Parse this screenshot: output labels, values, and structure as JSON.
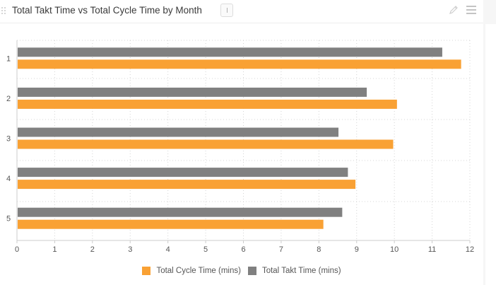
{
  "header": {
    "title": "Total Takt Time vs Total Cycle Time by Month",
    "icons": [
      "drag-handle-icon",
      "info-icon",
      "pencil-icon",
      "menu-icon"
    ]
  },
  "colors": {
    "takt": "#808080",
    "cycle": "#f9a134",
    "grid": "#d4d4d4",
    "axis": "#cccccc"
  },
  "chart_data": {
    "type": "bar",
    "orientation": "horizontal",
    "categories": [
      "1",
      "2",
      "3",
      "4",
      "5"
    ],
    "series": [
      {
        "name": "Total Takt Time (mins)",
        "color": "#808080",
        "values": [
          11.25,
          9.25,
          8.5,
          8.75,
          8.6
        ]
      },
      {
        "name": "Total Cycle Time (mins)",
        "color": "#f9a134",
        "values": [
          11.75,
          10.05,
          9.95,
          8.95,
          8.1
        ]
      }
    ],
    "title": "Total Takt Time vs Total Cycle Time by Month",
    "xlabel": "",
    "ylabel": "",
    "xlim": [
      0,
      12
    ],
    "xticks": [
      "0",
      "1",
      "2",
      "3",
      "4",
      "5",
      "6",
      "7",
      "8",
      "9",
      "10",
      "11",
      "12"
    ],
    "grid": "dotted",
    "legend_position": "bottom"
  },
  "legend": {
    "items": [
      {
        "label": "Total Cycle Time (mins)",
        "color": "#f9a134"
      },
      {
        "label": "Total Takt Time (mins)",
        "color": "#808080"
      }
    ]
  }
}
